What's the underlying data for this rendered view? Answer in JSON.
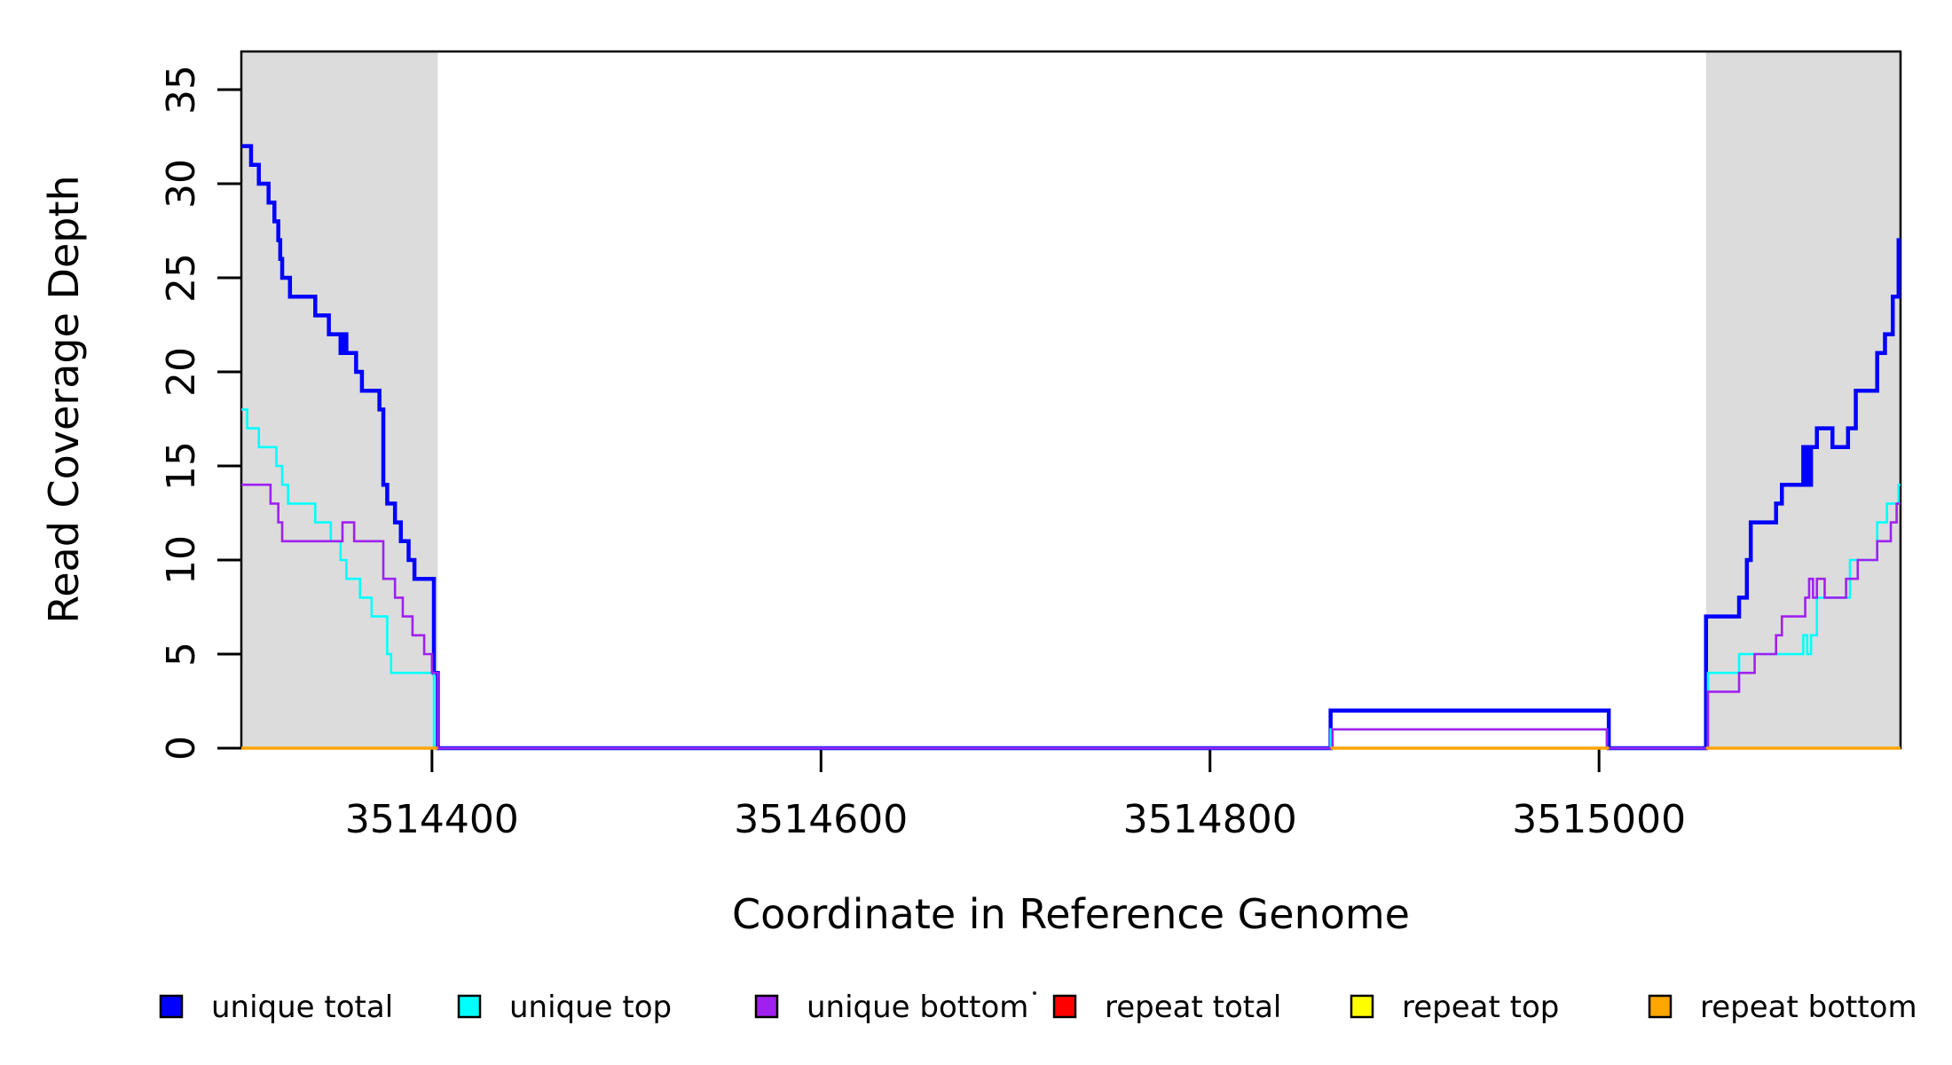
{
  "chart_data": {
    "type": "line",
    "subtype": "step-coverage-plot",
    "title": "",
    "xlabel": "Coordinate in Reference Genome",
    "ylabel": "Read Coverage Depth",
    "xlim": [
      3514302,
      3515155
    ],
    "ylim": [
      0,
      37
    ],
    "x_ticks": [
      3514400,
      3514600,
      3514800,
      3515000
    ],
    "y_ticks": [
      0,
      5,
      10,
      15,
      20,
      25,
      30,
      35
    ],
    "grid": false,
    "background_color": "#ffffff",
    "frame_color": "#000000",
    "shaded_region_color": "#dcdcdc",
    "shaded_regions": [
      {
        "name": "repeat-region-left",
        "x_start": 3514302,
        "x_end": 3514403
      },
      {
        "name": "repeat-region-right",
        "x_start": 3515055,
        "x_end": 3515155
      }
    ],
    "series": [
      {
        "name": "repeat total",
        "color": "#ff0000",
        "line_width": 2.4,
        "render": "segments",
        "value": 0,
        "segments": [
          [
            3514302,
            3514403
          ],
          [
            3514862,
            3515005
          ],
          [
            3515055,
            3515155
          ]
        ]
      },
      {
        "name": "repeat top",
        "color": "#ffff00",
        "line_width": 2.4,
        "render": "segments",
        "value": 0,
        "segments": [
          [
            3514302,
            3514403
          ],
          [
            3514862,
            3515005
          ],
          [
            3515055,
            3515155
          ]
        ]
      },
      {
        "name": "unique total",
        "color": "#0000ff",
        "line_width": 4.5,
        "render": "steps",
        "steps": [
          [
            3514302,
            32
          ],
          [
            3514307,
            31
          ],
          [
            3514311,
            30
          ],
          [
            3514316,
            29
          ],
          [
            3514319,
            28
          ],
          [
            3514321,
            27
          ],
          [
            3514322,
            26
          ],
          [
            3514323,
            25
          ],
          [
            3514327,
            24
          ],
          [
            3514340,
            23
          ],
          [
            3514347,
            22
          ],
          [
            3514353,
            21
          ],
          [
            3514355,
            22
          ],
          [
            3514356,
            21
          ],
          [
            3514361,
            20
          ],
          [
            3514364,
            19
          ],
          [
            3514373,
            18
          ],
          [
            3514375,
            14
          ],
          [
            3514377,
            13
          ],
          [
            3514381,
            12
          ],
          [
            3514384,
            11
          ],
          [
            3514388,
            10
          ],
          [
            3514391,
            9
          ],
          [
            3514401,
            4
          ],
          [
            3514403,
            0
          ],
          [
            3514862,
            2
          ],
          [
            3515005,
            0
          ],
          [
            3515055,
            7
          ],
          [
            3515072,
            8
          ],
          [
            3515076,
            10
          ],
          [
            3515078,
            12
          ],
          [
            3515091,
            13
          ],
          [
            3515094,
            14
          ],
          [
            3515105,
            16
          ],
          [
            3515107,
            14
          ],
          [
            3515109,
            16
          ],
          [
            3515112,
            17
          ],
          [
            3515120,
            16
          ],
          [
            3515128,
            17
          ],
          [
            3515132,
            19
          ],
          [
            3515143,
            21
          ],
          [
            3515147,
            22
          ],
          [
            3515151,
            24
          ],
          [
            3515154,
            27
          ]
        ]
      },
      {
        "name": "unique top",
        "color": "#00ffff",
        "line_width": 2.6,
        "render": "steps",
        "steps": [
          [
            3514302,
            18
          ],
          [
            3514305,
            17
          ],
          [
            3514311,
            16
          ],
          [
            3514320,
            15
          ],
          [
            3514323,
            14
          ],
          [
            3514326,
            13
          ],
          [
            3514340,
            12
          ],
          [
            3514348,
            11
          ],
          [
            3514353,
            10
          ],
          [
            3514356,
            9
          ],
          [
            3514363,
            8
          ],
          [
            3514369,
            7
          ],
          [
            3514377,
            5
          ],
          [
            3514379,
            4
          ],
          [
            3514401,
            0
          ],
          [
            3514862,
            1
          ],
          [
            3515004,
            0
          ],
          [
            3515056,
            4
          ],
          [
            3515072,
            5
          ],
          [
            3515105,
            6
          ],
          [
            3515107,
            5
          ],
          [
            3515109,
            6
          ],
          [
            3515112,
            8
          ],
          [
            3515129,
            10
          ],
          [
            3515143,
            12
          ],
          [
            3515148,
            13
          ],
          [
            3515154,
            14
          ]
        ]
      },
      {
        "name": "unique bottom",
        "color": "#a020f0",
        "line_width": 2.6,
        "render": "steps",
        "steps": [
          [
            3514302,
            14
          ],
          [
            3514317,
            13
          ],
          [
            3514321,
            12
          ],
          [
            3514323,
            11
          ],
          [
            3514354,
            12
          ],
          [
            3514360,
            11
          ],
          [
            3514375,
            9
          ],
          [
            3514381,
            8
          ],
          [
            3514385,
            7
          ],
          [
            3514390,
            6
          ],
          [
            3514396,
            5
          ],
          [
            3514400,
            4
          ],
          [
            3514403,
            0
          ],
          [
            3514863,
            1
          ],
          [
            3515004,
            0
          ],
          [
            3515056,
            3
          ],
          [
            3515072,
            4
          ],
          [
            3515080,
            5
          ],
          [
            3515091,
            6
          ],
          [
            3515094,
            7
          ],
          [
            3515106,
            8
          ],
          [
            3515108,
            9
          ],
          [
            3515110,
            8
          ],
          [
            3515112,
            9
          ],
          [
            3515116,
            8
          ],
          [
            3515127,
            9
          ],
          [
            3515133,
            10
          ],
          [
            3515143,
            11
          ],
          [
            3515150,
            12
          ],
          [
            3515153,
            13
          ]
        ]
      },
      {
        "name": "repeat bottom",
        "color": "#ffa500",
        "line_width": 3.5,
        "render": "segments",
        "value": 0,
        "segments": [
          [
            3514302,
            3514403
          ],
          [
            3514862,
            3515005
          ],
          [
            3515055,
            3515155
          ]
        ]
      }
    ],
    "legend": {
      "position": "bottom",
      "items": [
        {
          "label": "unique total",
          "color": "#0000ff"
        },
        {
          "label": "unique top",
          "color": "#00ffff"
        },
        {
          "label": "unique bottom",
          "color": "#a020f0"
        },
        {
          "label": "repeat total",
          "color": "#ff0000"
        },
        {
          "label": "repeat top",
          "color": "#ffff00"
        },
        {
          "label": "repeat bottom",
          "color": "#ffa500"
        }
      ]
    },
    "annotations": {
      "stray_dot": {
        "x": 1166,
        "y": 1119,
        "color": "#222222"
      }
    }
  }
}
